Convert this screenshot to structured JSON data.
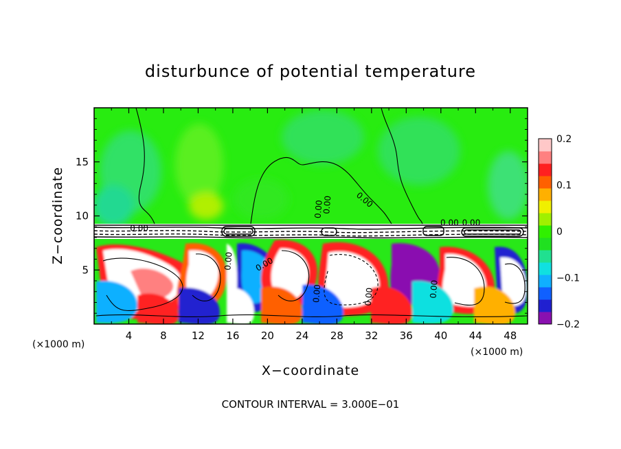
{
  "chart_data": {
    "type": "heatmap",
    "title": "disturbunce of potential temperature",
    "xlabel": "X−coordinate",
    "ylabel": "Z−coordinate",
    "x_unit_left": "(×1000 m)",
    "x_unit_right": "(×1000 m)",
    "footer": "CONTOUR INTERVAL = 3.000E−01",
    "xlim": [
      0,
      50
    ],
    "ylim": [
      0,
      20
    ],
    "x_ticks": [
      4,
      8,
      12,
      16,
      20,
      24,
      28,
      32,
      36,
      40,
      44,
      48
    ],
    "x_tick_labels": [
      "4",
      "8",
      "12",
      "16",
      "20",
      "24",
      "28",
      "32",
      "36",
      "40",
      "44",
      "48"
    ],
    "y_ticks": [
      5,
      10,
      15
    ],
    "y_tick_labels": [
      "5",
      "10",
      "15"
    ],
    "colorbar": {
      "range": [
        -0.2,
        0.2
      ],
      "ticks": [
        0.2,
        0.1,
        0,
        -0.1,
        -0.2
      ],
      "tick_labels": [
        "0.2",
        "0.1",
        "0",
        "−0.1",
        "−0.2"
      ],
      "colors": [
        "#8a10b0",
        "#2020d0",
        "#1060ff",
        "#10b0ff",
        "#10e0e0",
        "#20e090",
        "#20e020",
        "#30f000",
        "#a0f000",
        "#f0f000",
        "#ffb000",
        "#ff6000",
        "#ff2020",
        "#ff8080",
        "#ffc8c8"
      ]
    },
    "contour_labels": [
      {
        "text": "0.00",
        "x": 26.2,
        "y": 10.6,
        "rot": -85
      },
      {
        "text": "0.00",
        "x": 27.2,
        "y": 11.0,
        "rot": -85
      },
      {
        "text": "0.00",
        "x": 31.0,
        "y": 11.3,
        "rot": 40
      },
      {
        "text": "0.00",
        "x": 41.0,
        "y": 9.1,
        "rot": 0
      },
      {
        "text": "0.00",
        "x": 43.5,
        "y": 9.1,
        "rot": 0
      },
      {
        "text": "0.00",
        "x": 15.8,
        "y": 5.8,
        "rot": -85
      },
      {
        "text": "0.00",
        "x": 19.8,
        "y": 5.3,
        "rot": -30
      },
      {
        "text": "0.00",
        "x": 26.0,
        "y": 2.8,
        "rot": -85
      },
      {
        "text": "0.00",
        "x": 32.0,
        "y": 2.5,
        "rot": -85
      },
      {
        "text": "0.00",
        "x": 39.5,
        "y": 3.2,
        "rot": -85
      },
      {
        "text": "0.00",
        "x": 5.2,
        "y": 8.6,
        "rot": 0
      }
    ]
  }
}
